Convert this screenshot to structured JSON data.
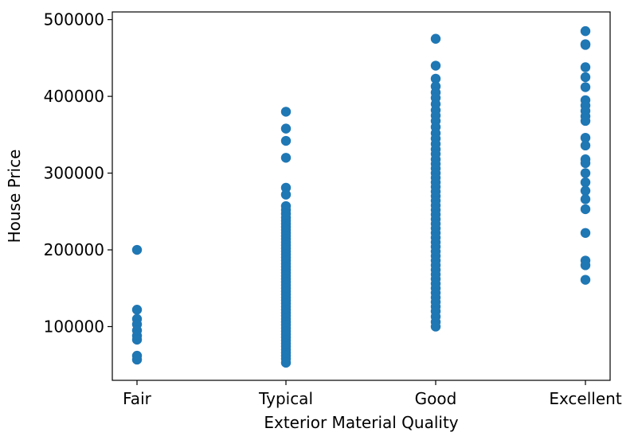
{
  "chart_data": {
    "type": "scatter",
    "title": "",
    "xlabel": "Exterior Material Quality",
    "ylabel": "House Price",
    "categories": [
      "Fair",
      "Typical",
      "Good",
      "Excellent"
    ],
    "ylim": [
      30000,
      510000
    ],
    "yticks": [
      100000,
      200000,
      300000,
      400000,
      500000
    ],
    "ytick_labels": [
      "100000",
      "200000",
      "300000",
      "400000",
      "500000"
    ],
    "grid": false,
    "marker_color": "#1f77b4",
    "points": [
      {
        "category": "Fair",
        "values": [
          200000,
          122000,
          110000,
          103000,
          95000,
          88000,
          83000,
          62000,
          57000
        ]
      },
      {
        "category": "Typical",
        "values": [
          380000,
          358000,
          342000,
          320000,
          281000,
          272000,
          257000,
          252000,
          247000,
          242000,
          238000,
          234000,
          230000,
          226000,
          222000,
          218000,
          214000,
          210000,
          206000,
          202000,
          198000,
          194000,
          190000,
          186000,
          182000,
          178000,
          174000,
          170000,
          166000,
          162000,
          158000,
          154000,
          150000,
          146000,
          142000,
          138000,
          134000,
          130000,
          126000,
          122000,
          118000,
          114000,
          110000,
          106000,
          102000,
          98000,
          94000,
          90000,
          86000,
          82000,
          78000,
          74000,
          70000,
          66000,
          62000,
          58000,
          53000
        ]
      },
      {
        "category": "Good",
        "values": [
          475000,
          440000,
          423000,
          413000,
          405000,
          398000,
          390000,
          382000,
          375000,
          368000,
          360000,
          352000,
          345000,
          338000,
          331000,
          325000,
          318000,
          312000,
          306000,
          300000,
          294000,
          288000,
          282000,
          276000,
          270000,
          264000,
          258000,
          252000,
          246000,
          240000,
          234000,
          228000,
          222000,
          216000,
          210000,
          204000,
          198000,
          192000,
          186000,
          180000,
          174000,
          168000,
          162000,
          156000,
          150000,
          144000,
          138000,
          132000,
          126000,
          120000,
          113000,
          106000,
          100000
        ]
      },
      {
        "category": "Excellent",
        "values": [
          485000,
          468000,
          467000,
          438000,
          425000,
          412000,
          395000,
          388000,
          381000,
          374000,
          368000,
          346000,
          336000,
          318000,
          313000,
          300000,
          288000,
          277000,
          266000,
          253000,
          222000,
          186000,
          180000,
          161000
        ]
      }
    ]
  }
}
